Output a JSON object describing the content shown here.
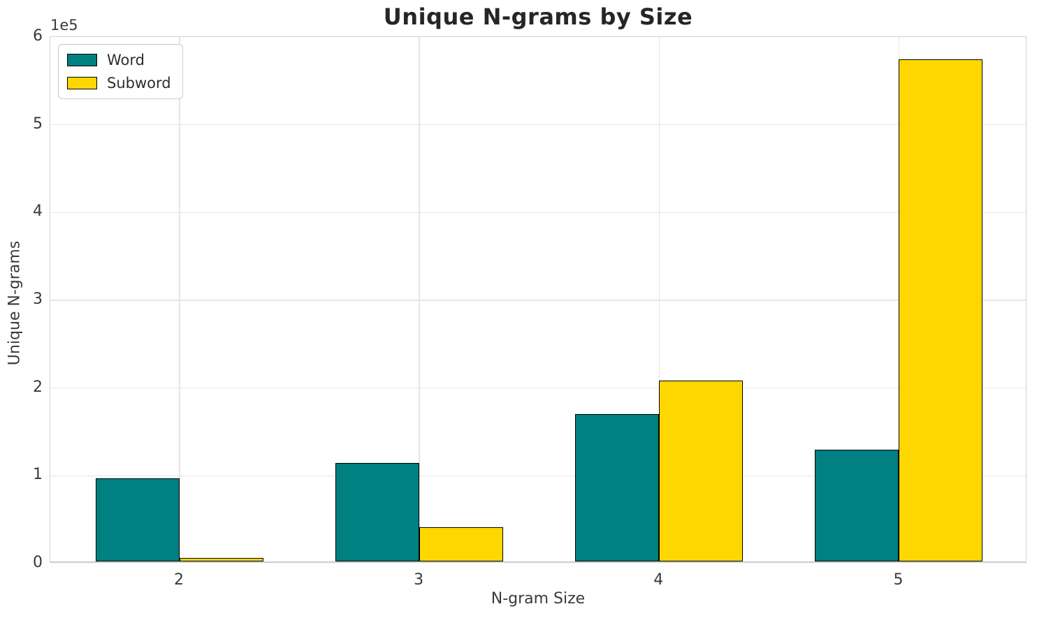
{
  "title": "Unique N-grams by Size",
  "chart_data": {
    "type": "bar",
    "title": "Unique N-grams by Size",
    "xlabel": "N-gram Size",
    "ylabel": "Unique N-grams",
    "categories": [
      "2",
      "3",
      "4",
      "5"
    ],
    "series": [
      {
        "name": "Word",
        "color": "#008080",
        "values": [
          95000,
          112000,
          168000,
          127000
        ]
      },
      {
        "name": "Subword",
        "color": "#FFD700",
        "values": [
          4000,
          39000,
          206000,
          572000
        ]
      }
    ],
    "ylim": [
      0,
      600000
    ],
    "yticks": [
      0,
      100000,
      200000,
      300000,
      400000,
      500000,
      600000
    ],
    "ytick_labels": [
      "0",
      "1",
      "2",
      "3",
      "4",
      "5",
      "6"
    ],
    "y_offset_label": "1e5",
    "xtick_labels": [
      "2",
      "3",
      "4",
      "5"
    ],
    "bar_width_data_units": 0.35,
    "bar_edge_color": "#000000",
    "grid": true,
    "legend_position": "upper left"
  }
}
